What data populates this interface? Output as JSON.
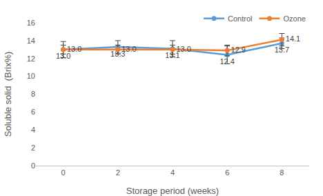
{
  "chart_data": {
    "type": "line",
    "x_label": "Storage period (weeks)",
    "y_label": "Soluble solid  (Brix%)",
    "x": [
      0,
      2,
      4,
      6,
      8
    ],
    "xlim": [
      -1,
      9
    ],
    "xticks": [
      0,
      2,
      4,
      6,
      8
    ],
    "ylim": [
      0,
      16
    ],
    "yticks": [
      0,
      2,
      4,
      6,
      8,
      10,
      12,
      14,
      16
    ],
    "grid": false,
    "legend": "top right",
    "data_labels": true,
    "marker": "circle",
    "series": [
      {
        "name": "Control",
        "color": "#5b9bd5",
        "values": [
          13.0,
          13.3,
          13.1,
          12.4,
          13.7
        ],
        "value_labels": [
          "13.0",
          "13.3",
          "13.1",
          "12.4",
          "13.7"
        ],
        "error": [
          0.9,
          0.7,
          0.9,
          1.0,
          0.6
        ]
      },
      {
        "name": "Ozone",
        "color": "#ed7d31",
        "values": [
          13.0,
          13.0,
          13.0,
          12.9,
          14.1
        ],
        "value_labels": [
          "13.0",
          "13.0",
          "13.0",
          "12.9",
          "14.1"
        ],
        "error": [
          0.5,
          0.5,
          0.5,
          0.6,
          0.7
        ]
      }
    ]
  }
}
